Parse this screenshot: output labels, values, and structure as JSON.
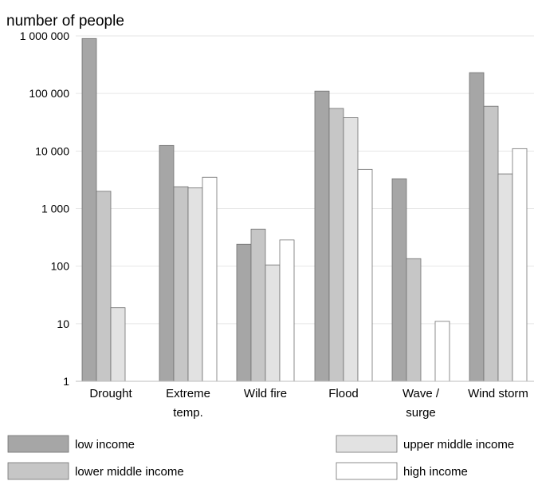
{
  "chart_data": {
    "type": "bar",
    "ylabel": "number of people",
    "xlabel": "",
    "yscale": "log",
    "ylim": [
      1,
      1000000
    ],
    "yticks": [
      {
        "value": 1,
        "label": "1"
      },
      {
        "value": 10,
        "label": "10"
      },
      {
        "value": 100,
        "label": "100"
      },
      {
        "value": 1000,
        "label": "1 000"
      },
      {
        "value": 10000,
        "label": "10 000"
      },
      {
        "value": 100000,
        "label": "100 000"
      },
      {
        "value": 1000000,
        "label": "1 000 000"
      }
    ],
    "grid": true,
    "legend_position": "bottom",
    "categories": [
      [
        "Drought"
      ],
      [
        "Extreme",
        "temp."
      ],
      [
        "Wild fire"
      ],
      [
        "Flood"
      ],
      [
        "Wave /",
        "surge"
      ],
      [
        "Wind storm"
      ]
    ],
    "series": [
      {
        "name": "low income",
        "color": "#a6a6a6",
        "values": [
          900000,
          12500,
          240,
          110000,
          3300,
          230000
        ]
      },
      {
        "name": "lower middle income",
        "color": "#c6c6c6",
        "values": [
          2000,
          2400,
          440,
          55000,
          135,
          60000
        ]
      },
      {
        "name": "upper middle income",
        "color": "#e2e2e2",
        "values": [
          19,
          2300,
          105,
          38000,
          null,
          4000
        ]
      },
      {
        "name": "high income",
        "color": "#ffffff",
        "values": [
          null,
          3500,
          285,
          4800,
          11,
          11000
        ]
      }
    ]
  }
}
